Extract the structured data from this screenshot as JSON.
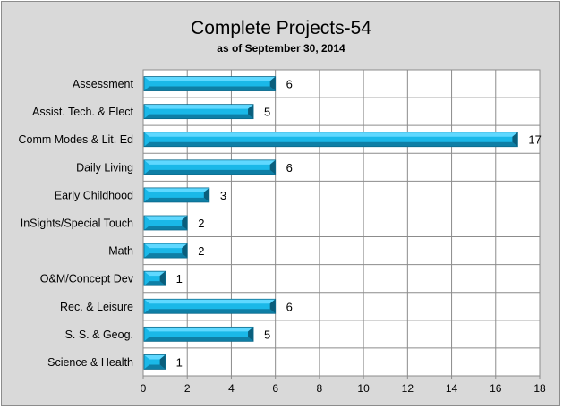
{
  "chart_data": {
    "type": "bar",
    "orientation": "horizontal",
    "title": "Complete Projects-54",
    "subtitle": "as of September 30, 2014",
    "categories": [
      "Assessment",
      "Assist. Tech. & Elect",
      "Comm Modes & Lit. Ed",
      "Daily Living",
      "Early Childhood",
      "InSights/Special Touch",
      "Math",
      "O&M/Concept Dev",
      "Rec. & Leisure",
      "S. S. & Geog.",
      "Science & Health"
    ],
    "values": [
      6,
      5,
      17,
      6,
      3,
      2,
      2,
      1,
      6,
      5,
      1
    ],
    "xlim": [
      0,
      18
    ],
    "xticks": [
      "0",
      "2",
      "4",
      "6",
      "8",
      "10",
      "12",
      "14",
      "16",
      "18"
    ],
    "grid": true,
    "legend": "none",
    "colors": {
      "bar_face": "#1ab8e8",
      "bar_top": "#5fd8ff",
      "bar_dark": "#0e7fa6",
      "background": "#d9d9d9",
      "plot_background": "#ffffff",
      "grid": "#8c8c8c"
    }
  }
}
